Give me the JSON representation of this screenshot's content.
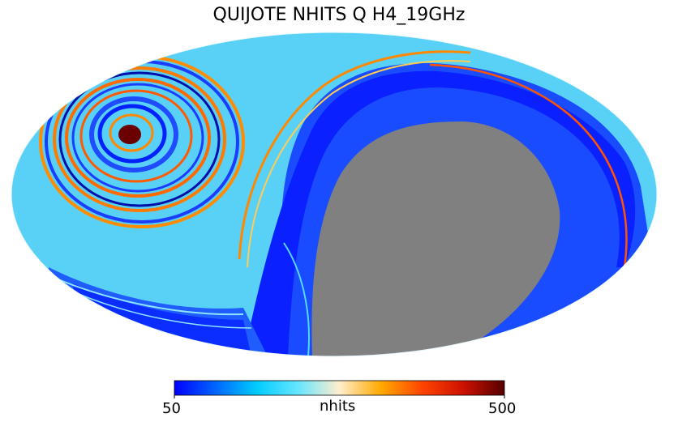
{
  "title": "QUIJOTE NHITS Q H4_19GHz",
  "colorbar": {
    "label": "nhits",
    "min_label": "50",
    "max_label": "500",
    "min": 50,
    "max": 500,
    "colors": [
      "#0000ff",
      "#0066ff",
      "#00ccff",
      "#66e6ff",
      "#ffeecc",
      "#ffaa00",
      "#ff4400",
      "#cc1100",
      "#550000"
    ]
  },
  "map": {
    "projection": "mollweide",
    "masked_color": "#808080"
  }
}
